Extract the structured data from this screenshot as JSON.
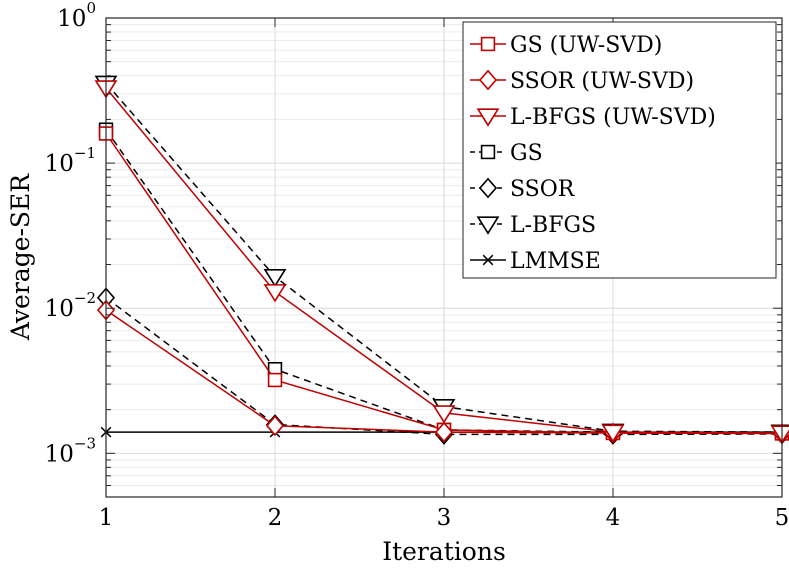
{
  "chart_data": {
    "type": "line",
    "title": "",
    "xlabel": "Iterations",
    "ylabel": "Average-SER",
    "x": [
      1,
      2,
      3,
      4,
      5
    ],
    "xlim": [
      1,
      5
    ],
    "ylim": [
      0.0005,
      1
    ],
    "yscale": "log",
    "grid": true,
    "legend_position": "top-right",
    "x_ticks": [
      "1",
      "2",
      "3",
      "4",
      "5"
    ],
    "y_ticks": [
      {
        "value": 0.001,
        "base": "10",
        "exp": "−3"
      },
      {
        "value": 0.01,
        "base": "10",
        "exp": "−2"
      },
      {
        "value": 0.1,
        "base": "10",
        "exp": "−1"
      },
      {
        "value": 1,
        "base": "10",
        "exp": "0"
      }
    ],
    "series": [
      {
        "name": "GS (UW-SVD)",
        "color": "#c00000",
        "dash": "solid",
        "marker": "square",
        "values": [
          0.16,
          0.0032,
          0.00145,
          0.00138,
          0.00137
        ]
      },
      {
        "name": "SSOR (UW-SVD)",
        "color": "#c00000",
        "dash": "solid",
        "marker": "diamond",
        "values": [
          0.0097,
          0.00155,
          0.0014,
          0.00138,
          0.00137
        ]
      },
      {
        "name": "L-BFGS (UW-SVD)",
        "color": "#c00000",
        "dash": "solid",
        "marker": "triangle-down",
        "values": [
          0.33,
          0.013,
          0.0019,
          0.0014,
          0.00138
        ]
      },
      {
        "name": "GS",
        "color": "#000000",
        "dash": "dashed",
        "marker": "square",
        "values": [
          0.17,
          0.0038,
          0.00145,
          0.0014,
          0.00138
        ]
      },
      {
        "name": "SSOR",
        "color": "#000000",
        "dash": "dashed",
        "marker": "diamond",
        "values": [
          0.0118,
          0.00158,
          0.00135,
          0.00135,
          0.00136
        ]
      },
      {
        "name": "L-BFGS",
        "color": "#000000",
        "dash": "dashed",
        "marker": "triangle-down",
        "values": [
          0.355,
          0.0165,
          0.0021,
          0.00142,
          0.0014
        ]
      },
      {
        "name": "LMMSE",
        "color": "#000000",
        "dash": "solid",
        "marker": "x",
        "values": [
          0.0014,
          0.0014,
          0.0014,
          0.0014,
          0.0014
        ]
      }
    ]
  }
}
